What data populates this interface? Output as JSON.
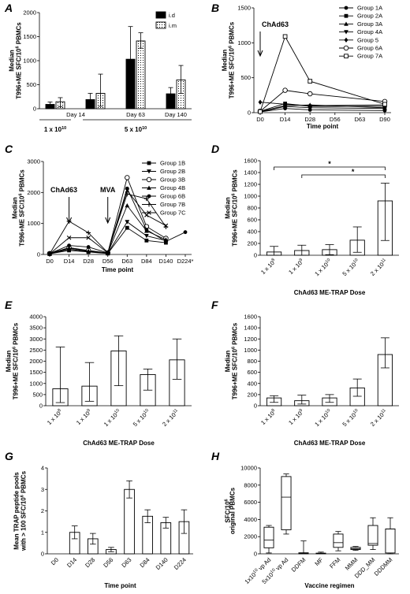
{
  "chart_data": [
    {
      "panel": "A",
      "type": "bar",
      "ylabel": "Median\nT996+ME SFC/10^6 PBMCs",
      "ylim": [
        0,
        2000
      ],
      "yticks": [
        0,
        500,
        1000,
        1500,
        2000
      ],
      "categories": [
        "Day 14",
        "Day 63",
        "Day 140"
      ],
      "series": [
        {
          "name": "i.d",
          "values": [
            90,
            1030,
            310
          ],
          "err_upper": [
            140,
            1710,
            440
          ],
          "err_lower": [
            50,
            350,
            200
          ],
          "fill": "solid"
        },
        {
          "name": "i.m",
          "values": [
            145,
            1410,
            600
          ],
          "err_upper": [
            230,
            1580,
            900
          ],
          "err_lower": [
            40,
            1260,
            320
          ],
          "fill": "dotted"
        }
      ],
      "extra_pairs": [
        {
          "values": [
            190,
            320
          ],
          "err_upper": [
            320,
            720
          ],
          "err_lower": [
            90,
            50
          ]
        }
      ],
      "dose_groups": [
        {
          "label": "1 x 10",
          "exp": "10"
        },
        {
          "label": "5 x 10",
          "exp": "10"
        }
      ]
    },
    {
      "panel": "B",
      "type": "line",
      "xlabel": "Time point",
      "ylabel": "Median\nT996+ME SFC/10^6 PBMCs",
      "x": [
        "D0",
        "D14",
        "D28",
        "D56",
        "D63",
        "D90"
      ],
      "ylim": [
        0,
        1500
      ],
      "yticks": [
        0,
        500,
        1000,
        1500
      ],
      "annotation": "ChAd63",
      "series": [
        {
          "name": "Group 1A",
          "marker": "circle-filled",
          "points": [
            [
              0,
              10
            ],
            [
              1,
              60
            ],
            [
              2,
              40
            ],
            [
              5,
              30
            ]
          ]
        },
        {
          "name": "Group 2A",
          "marker": "square-filled",
          "points": [
            [
              0,
              20
            ],
            [
              1,
              130
            ],
            [
              2,
              90
            ],
            [
              5,
              90
            ]
          ]
        },
        {
          "name": "Group 3A",
          "marker": "triangle-up",
          "points": [
            [
              0,
              15
            ],
            [
              1,
              100
            ],
            [
              2,
              110
            ],
            [
              5,
              70
            ]
          ]
        },
        {
          "name": "Group 4A",
          "marker": "triangle-down",
          "points": [
            [
              0,
              10
            ],
            [
              1,
              90
            ],
            [
              2,
              70
            ],
            [
              5,
              60
            ]
          ]
        },
        {
          "name": "Group 5",
          "marker": "diamond",
          "points": [
            [
              0,
              150
            ],
            [
              1,
              120
            ],
            [
              2,
              100
            ],
            [
              5,
              110
            ]
          ]
        },
        {
          "name": "Group 6A",
          "marker": "circle-open",
          "points": [
            [
              0,
              20
            ],
            [
              1,
              320
            ],
            [
              2,
              270
            ],
            [
              5,
              160
            ]
          ]
        },
        {
          "name": "Group 7A",
          "marker": "square-open",
          "points": [
            [
              0,
              15
            ],
            [
              1,
              1090
            ],
            [
              2,
              450
            ],
            [
              5,
              120
            ]
          ]
        }
      ]
    },
    {
      "panel": "C",
      "type": "line",
      "xlabel": "Time point",
      "ylabel": "Median\nT996+ME SFC/10^6 PBMCs",
      "x": [
        "D0",
        "D14",
        "D28",
        "D56",
        "D63",
        "D84",
        "D140",
        "D224*"
      ],
      "ylim": [
        0,
        3000
      ],
      "yticks": [
        0,
        1000,
        2000,
        3000
      ],
      "annotations": [
        "ChAd63",
        "MVA"
      ],
      "series": [
        {
          "name": "Group 1B",
          "marker": "square-filled",
          "points": [
            [
              0,
              20
            ],
            [
              1,
              130
            ],
            [
              2,
              80
            ],
            [
              3,
              30
            ],
            [
              4,
              860
            ],
            [
              5,
              450
            ],
            [
              6,
              380
            ]
          ]
        },
        {
          "name": "Group 2B",
          "marker": "triangle-down",
          "points": [
            [
              0,
              20
            ],
            [
              1,
              170
            ],
            [
              2,
              90
            ],
            [
              3,
              40
            ],
            [
              4,
              1050
            ],
            [
              5,
              600
            ],
            [
              6,
              450
            ]
          ]
        },
        {
          "name": "Group 3B",
          "marker": "circle-open",
          "points": [
            [
              0,
              30
            ],
            [
              1,
              220
            ],
            [
              2,
              130
            ],
            [
              3,
              50
            ],
            [
              4,
              2480
            ],
            [
              5,
              900
            ],
            [
              6,
              520
            ]
          ]
        },
        {
          "name": "Group 4B",
          "marker": "triangle-up",
          "points": [
            [
              0,
              20
            ],
            [
              1,
              200
            ],
            [
              2,
              110
            ],
            [
              3,
              40
            ],
            [
              4,
              1580
            ],
            [
              5,
              760
            ],
            [
              6,
              480
            ]
          ]
        },
        {
          "name": "Group 6B",
          "marker": "circle-filled",
          "points": [
            [
              0,
              30
            ],
            [
              1,
              290
            ],
            [
              2,
              240
            ],
            [
              3,
              50
            ],
            [
              4,
              2130
            ],
            [
              5,
              800
            ],
            [
              6,
              420
            ],
            [
              7,
              720
            ]
          ]
        },
        {
          "name": "Group 7B",
          "marker": "plus",
          "points": [
            [
              0,
              20
            ],
            [
              1,
              1070
            ],
            [
              2,
              700
            ],
            [
              3,
              60
            ],
            [
              4,
              1950
            ],
            [
              5,
              1800
            ],
            [
              6,
              890
            ]
          ]
        },
        {
          "name": "Group 7C",
          "marker": "x",
          "points": [
            [
              0,
              20
            ],
            [
              1,
              540
            ],
            [
              2,
              540
            ],
            [
              3,
              50
            ],
            [
              4,
              2060
            ],
            [
              5,
              1270
            ],
            [
              6,
              930
            ]
          ]
        }
      ]
    },
    {
      "panel": "D",
      "type": "bar",
      "xlabel": "ChAd63 ME-TRAP Dose",
      "ylabel": "Median\nT996+ME SFC/10^6 PBMCs",
      "ylim": [
        0,
        1600
      ],
      "yticks": [
        0,
        200,
        400,
        600,
        800,
        1000,
        1200,
        1400,
        1600
      ],
      "categories": [
        {
          "base": "1 x 10",
          "exp": "8"
        },
        {
          "base": "1 x 10",
          "exp": "9"
        },
        {
          "base": "1 x 10",
          "exp": "10"
        },
        {
          "base": "5 x 10",
          "exp": "10"
        },
        {
          "base": "2 x 10",
          "exp": "11"
        }
      ],
      "values": [
        55,
        80,
        95,
        255,
        920
      ],
      "err_upper": [
        150,
        170,
        180,
        480,
        1220
      ],
      "err_lower": [
        0,
        0,
        10,
        50,
        250
      ],
      "significance": [
        {
          "from": 0,
          "to": 4,
          "label": "*"
        },
        {
          "from": 1,
          "to": 4,
          "label": "*"
        }
      ]
    },
    {
      "panel": "E",
      "type": "bar",
      "xlabel": "ChAd63 ME-TRAP Dose",
      "ylabel": "Median\nT996+ME SFC/10^6 PBMCs",
      "ylim": [
        0,
        4000
      ],
      "yticks": [
        0,
        500,
        1000,
        1500,
        2000,
        2500,
        3000,
        3500,
        4000
      ],
      "categories": [
        {
          "base": "1 x 10",
          "exp": "8"
        },
        {
          "base": "1 x 10",
          "exp": "9"
        },
        {
          "base": "1 x 10",
          "exp": "10"
        },
        {
          "base": "5 x 10",
          "exp": "10"
        },
        {
          "base": "2 x 10",
          "exp": "11"
        }
      ],
      "values": [
        760,
        880,
        2460,
        1400,
        2060
      ],
      "err_upper": [
        2640,
        1940,
        3140,
        1650,
        3000
      ],
      "err_lower": [
        140,
        200,
        900,
        700,
        1190
      ]
    },
    {
      "panel": "F",
      "type": "bar",
      "xlabel": "ChAd63 ME-TRAP Dose",
      "ylabel": "Median\nT996+ME SFC/10^6 PBMCs",
      "ylim": [
        0,
        1600
      ],
      "yticks": [
        0,
        200,
        400,
        600,
        800,
        1000,
        1200,
        1400,
        1600
      ],
      "categories": [
        {
          "base": "1 x 10",
          "exp": "8"
        },
        {
          "base": "1 x 10",
          "exp": "9"
        },
        {
          "base": "1 x 10",
          "exp": "10"
        },
        {
          "base": "5 x 10",
          "exp": "10"
        },
        {
          "base": "2 x 10",
          "exp": "11"
        }
      ],
      "values": [
        140,
        90,
        140,
        320,
        920
      ],
      "err_upper": [
        180,
        190,
        200,
        480,
        1220
      ],
      "err_lower": [
        60,
        30,
        60,
        170,
        680
      ]
    },
    {
      "panel": "G",
      "type": "bar",
      "xlabel": "Time point",
      "ylabel": "Mean TRAP peptide pools\nwith > 100 SFC/10^6 PBMCs",
      "ylim": [
        0,
        4
      ],
      "yticks": [
        0,
        1,
        2,
        3,
        4
      ],
      "categories": [
        "D0",
        "D14",
        "D28",
        "D56",
        "D63",
        "D84",
        "D140",
        "D224"
      ],
      "values": [
        0,
        1.0,
        0.7,
        0.2,
        3.0,
        1.75,
        1.45,
        1.5
      ],
      "err_upper": [
        0,
        1.3,
        0.95,
        0.3,
        3.4,
        2.05,
        1.7,
        2.05
      ],
      "err_lower": [
        0,
        0.7,
        0.45,
        0.1,
        2.6,
        1.45,
        1.2,
        0.95
      ]
    },
    {
      "panel": "H",
      "type": "box",
      "xlabel": "Vaccine regimen",
      "ylabel": "SFC/10^6\noriginal PBMCs",
      "ylim": [
        0,
        10000
      ],
      "yticks": [
        0,
        2000,
        4000,
        6000,
        8000,
        10000
      ],
      "categories": [
        {
          "base": "1x10",
          "exp": "10",
          "suffix": " vp Ad"
        },
        {
          "base": "5x10",
          "exp": "10",
          "suffix": " vp Ad"
        },
        {
          "base": "DDFM",
          "exp": "",
          "suffix": ""
        },
        {
          "base": "MF",
          "exp": "",
          "suffix": ""
        },
        {
          "base": "FFM",
          "exp": "",
          "suffix": ""
        },
        {
          "base": "MMM",
          "exp": "",
          "suffix": ""
        },
        {
          "base": "DDD_MM",
          "exp": "",
          "suffix": ""
        },
        {
          "base": "DDDMM",
          "exp": "",
          "suffix": ""
        }
      ],
      "boxes": [
        {
          "min": 100,
          "q1": 700,
          "median": 1600,
          "q3": 3100,
          "max": 3300
        },
        {
          "min": 2300,
          "q1": 2800,
          "median": 6600,
          "q3": 9000,
          "max": 9300
        },
        {
          "min": 0,
          "q1": 0,
          "median": 60,
          "q3": 120,
          "max": 1500
        },
        {
          "min": 0,
          "q1": 0,
          "median": 40,
          "q3": 80,
          "max": 200
        },
        {
          "min": 350,
          "q1": 750,
          "median": 1300,
          "q3": 2300,
          "max": 2600
        },
        {
          "min": 400,
          "q1": 500,
          "median": 600,
          "q3": 750,
          "max": 850
        },
        {
          "min": 500,
          "q1": 1000,
          "median": 1200,
          "q3": 3300,
          "max": 4200
        },
        {
          "min": 0,
          "q1": 100,
          "median": 2900,
          "q3": 2900,
          "max": 4200
        }
      ]
    }
  ]
}
